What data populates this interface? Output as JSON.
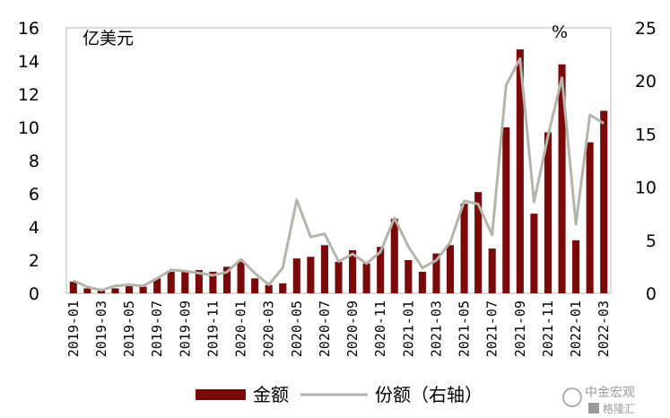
{
  "chart_data": {
    "type": "bar",
    "categories": [
      "2019-01",
      "2019-02",
      "2019-03",
      "2019-04",
      "2019-05",
      "2019-06",
      "2019-07",
      "2019-08",
      "2019-09",
      "2019-10",
      "2019-11",
      "2019-12",
      "2020-01",
      "2020-02",
      "2020-03",
      "2020-04",
      "2020-05",
      "2020-06",
      "2020-07",
      "2020-08",
      "2020-09",
      "2020-10",
      "2020-11",
      "2020-12",
      "2021-01",
      "2021-02",
      "2021-03",
      "2021-04",
      "2021-05",
      "2021-06",
      "2021-07",
      "2021-08",
      "2021-09",
      "2021-10",
      "2021-11",
      "2021-12",
      "2022-01",
      "2022-02",
      "2022-03"
    ],
    "x_tick_labels": [
      "2019-01",
      "2019-03",
      "2019-05",
      "2019-07",
      "2019-09",
      "2019-11",
      "2020-01",
      "2020-03",
      "2020-05",
      "2020-07",
      "2020-09",
      "2020-11",
      "2021-01",
      "2021-03",
      "2021-05",
      "2021-07",
      "2021-09",
      "2021-11",
      "2022-01",
      "2022-03"
    ],
    "series": [
      {
        "name": "金额",
        "kind": "bar",
        "axis": "left",
        "color": "#7a0a0a",
        "values": [
          0.7,
          0.3,
          0.2,
          0.3,
          0.5,
          0.4,
          0.9,
          1.3,
          1.3,
          1.4,
          1.3,
          1.6,
          1.9,
          0.9,
          0.5,
          0.6,
          2.1,
          2.2,
          2.9,
          1.9,
          2.6,
          1.8,
          2.8,
          4.5,
          2.0,
          1.3,
          2.4,
          2.9,
          5.4,
          6.1,
          2.7,
          10.0,
          14.7,
          4.8,
          9.7,
          13.8,
          3.2,
          9.1,
          11.0
        ]
      },
      {
        "name": "份额（右轴）",
        "kind": "line",
        "axis": "right",
        "color": "#b4b4aa",
        "values": [
          1.2,
          0.6,
          0.3,
          0.7,
          0.8,
          0.7,
          1.4,
          2.2,
          2.1,
          1.9,
          1.7,
          2.0,
          3.2,
          1.9,
          0.8,
          2.4,
          8.8,
          5.3,
          5.6,
          3.0,
          3.7,
          2.8,
          3.9,
          7.1,
          4.4,
          2.4,
          3.1,
          4.8,
          8.7,
          8.4,
          5.5,
          19.6,
          22.1,
          8.6,
          14.8,
          20.3,
          6.5,
          16.8,
          16.0
        ]
      }
    ],
    "y_left": {
      "unit": "亿美元",
      "range": [
        0,
        16
      ],
      "ticks": [
        0,
        2,
        4,
        6,
        8,
        10,
        12,
        14,
        16
      ]
    },
    "y_right": {
      "unit": "%",
      "range": [
        0,
        25
      ],
      "ticks": [
        0,
        5,
        10,
        15,
        20,
        25
      ]
    },
    "grid": false,
    "legend_position": "bottom"
  },
  "legend": {
    "bar_label": "金额",
    "line_label": "份额（右轴）"
  },
  "watermark": {
    "logo_text": "中金宏观",
    "sub_text": "格隆汇"
  }
}
